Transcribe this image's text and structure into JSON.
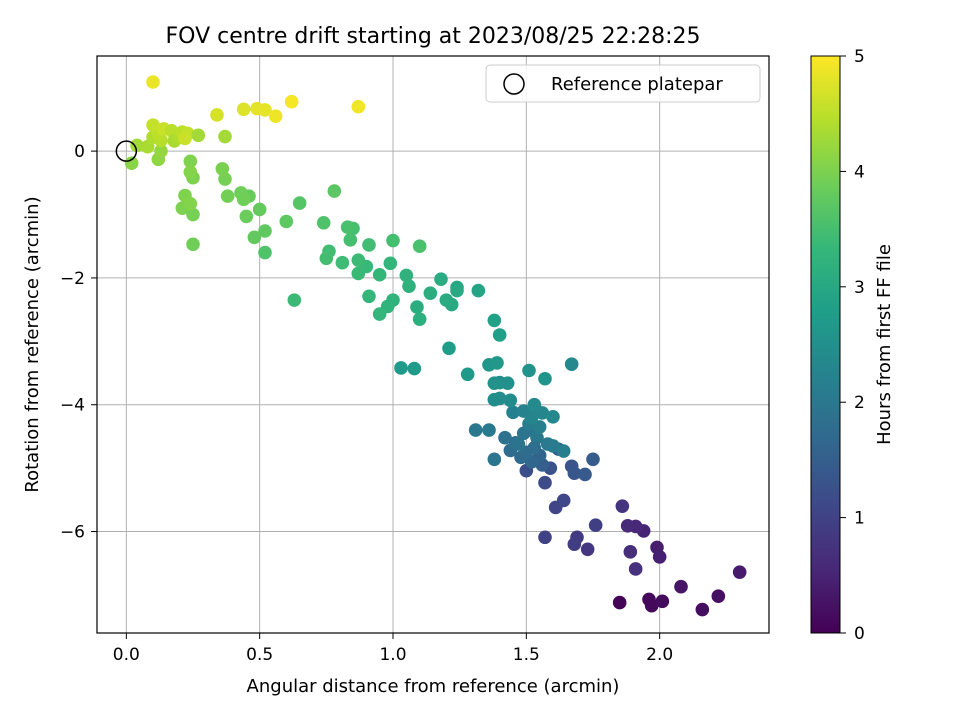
{
  "chart_data": {
    "type": "scatter",
    "title": "FOV centre drift starting at 2023/08/25 22:28:25",
    "xlabel": "Angular distance from reference (arcmin)",
    "ylabel": "Rotation from reference (arcmin)",
    "xlim": [
      -0.11,
      2.41
    ],
    "ylim": [
      -7.6,
      1.5
    ],
    "x_ticks": [
      0.0,
      0.5,
      1.0,
      1.5,
      2.0
    ],
    "x_tick_labels": [
      "0.0",
      "0.5",
      "1.0",
      "1.5",
      "2.0"
    ],
    "y_ticks": [
      0,
      -2,
      -4,
      -6
    ],
    "y_tick_labels": [
      "0",
      "−2",
      "−4",
      "−6"
    ],
    "grid": true,
    "legend": {
      "placement": "top-right",
      "entries": [
        {
          "label": "Reference platepar",
          "marker": "open-circle",
          "color": "#000000"
        }
      ]
    },
    "colorbar": {
      "label": "Hours from first FF file",
      "range": [
        0,
        5
      ],
      "ticks": [
        0,
        1,
        2,
        3,
        4,
        5
      ],
      "tick_labels": [
        "0",
        "1",
        "2",
        "3",
        "4",
        "5"
      ],
      "colormap": "viridis"
    },
    "reference_point": {
      "x": 0.0,
      "y": 0.0
    },
    "series": [
      {
        "color_by": "hours",
        "points": [
          {
            "x": 1.85,
            "y": -7.12,
            "c": 0.05
          },
          {
            "x": 1.96,
            "y": -7.07,
            "c": 0.1
          },
          {
            "x": 1.97,
            "y": -7.17,
            "c": 0.12
          },
          {
            "x": 2.01,
            "y": -7.1,
            "c": 0.15
          },
          {
            "x": 2.16,
            "y": -7.23,
            "c": 0.18
          },
          {
            "x": 2.22,
            "y": -7.02,
            "c": 0.22
          },
          {
            "x": 2.08,
            "y": -6.87,
            "c": 0.28
          },
          {
            "x": 2.3,
            "y": -6.64,
            "c": 0.35
          },
          {
            "x": 1.99,
            "y": -6.25,
            "c": 0.4
          },
          {
            "x": 2.0,
            "y": -6.4,
            "c": 0.45
          },
          {
            "x": 1.94,
            "y": -5.99,
            "c": 0.5
          },
          {
            "x": 1.91,
            "y": -5.92,
            "c": 0.55
          },
          {
            "x": 1.88,
            "y": -5.91,
            "c": 0.6
          },
          {
            "x": 1.89,
            "y": -6.32,
            "c": 0.65
          },
          {
            "x": 1.91,
            "y": -6.59,
            "c": 0.7
          },
          {
            "x": 1.86,
            "y": -5.6,
            "c": 0.75
          },
          {
            "x": 1.73,
            "y": -6.28,
            "c": 0.8
          },
          {
            "x": 1.69,
            "y": -6.09,
            "c": 0.85
          },
          {
            "x": 1.68,
            "y": -6.2,
            "c": 0.9
          },
          {
            "x": 1.76,
            "y": -5.9,
            "c": 0.95
          },
          {
            "x": 1.57,
            "y": -6.09,
            "c": 1.0
          },
          {
            "x": 1.61,
            "y": -5.62,
            "c": 1.05
          },
          {
            "x": 1.64,
            "y": -5.51,
            "c": 1.1
          },
          {
            "x": 1.57,
            "y": -5.23,
            "c": 1.15
          },
          {
            "x": 1.5,
            "y": -5.04,
            "c": 1.2
          },
          {
            "x": 1.59,
            "y": -5.0,
            "c": 1.25
          },
          {
            "x": 1.67,
            "y": -4.97,
            "c": 1.3
          },
          {
            "x": 1.68,
            "y": -5.08,
            "c": 1.35
          },
          {
            "x": 1.72,
            "y": -5.1,
            "c": 1.4
          },
          {
            "x": 1.75,
            "y": -4.86,
            "c": 1.45
          },
          {
            "x": 1.56,
            "y": -4.95,
            "c": 1.5
          },
          {
            "x": 1.62,
            "y": -4.7,
            "c": 1.55
          },
          {
            "x": 1.55,
            "y": -4.8,
            "c": 1.6
          },
          {
            "x": 1.52,
            "y": -4.9,
            "c": 1.65
          },
          {
            "x": 1.48,
            "y": -4.83,
            "c": 1.7
          },
          {
            "x": 1.44,
            "y": -4.72,
            "c": 1.75
          },
          {
            "x": 1.46,
            "y": -4.6,
            "c": 1.8
          },
          {
            "x": 1.42,
            "y": -4.52,
            "c": 1.85
          },
          {
            "x": 1.49,
            "y": -4.45,
            "c": 1.9
          },
          {
            "x": 1.51,
            "y": -4.4,
            "c": 1.95
          },
          {
            "x": 1.54,
            "y": -4.52,
            "c": 2.0
          },
          {
            "x": 1.58,
            "y": -4.62,
            "c": 2.05
          },
          {
            "x": 1.6,
            "y": -4.65,
            "c": 2.1
          },
          {
            "x": 1.64,
            "y": -4.73,
            "c": 2.15
          },
          {
            "x": 1.53,
            "y": -4.68,
            "c": 1.8
          },
          {
            "x": 1.5,
            "y": -4.75,
            "c": 1.75
          },
          {
            "x": 1.47,
            "y": -4.62,
            "c": 1.9
          },
          {
            "x": 1.38,
            "y": -4.86,
            "c": 1.95
          },
          {
            "x": 1.31,
            "y": -4.4,
            "c": 2.0
          },
          {
            "x": 1.36,
            "y": -4.4,
            "c": 2.05
          },
          {
            "x": 1.51,
            "y": -4.3,
            "c": 2.1
          },
          {
            "x": 1.55,
            "y": -4.35,
            "c": 2.15
          },
          {
            "x": 1.45,
            "y": -4.12,
            "c": 2.2
          },
          {
            "x": 1.49,
            "y": -4.1,
            "c": 2.25
          },
          {
            "x": 1.52,
            "y": -4.2,
            "c": 2.28
          },
          {
            "x": 1.54,
            "y": -4.1,
            "c": 2.3
          },
          {
            "x": 1.56,
            "y": -4.13,
            "c": 2.33
          },
          {
            "x": 1.6,
            "y": -4.19,
            "c": 2.35
          },
          {
            "x": 1.53,
            "y": -4.0,
            "c": 2.38
          },
          {
            "x": 1.44,
            "y": -3.93,
            "c": 2.4
          },
          {
            "x": 1.4,
            "y": -3.9,
            "c": 2.42
          },
          {
            "x": 1.38,
            "y": -3.92,
            "c": 2.45
          },
          {
            "x": 1.4,
            "y": -3.65,
            "c": 2.48
          },
          {
            "x": 1.43,
            "y": -3.66,
            "c": 2.5
          },
          {
            "x": 1.38,
            "y": -3.66,
            "c": 2.53
          },
          {
            "x": 1.51,
            "y": -3.46,
            "c": 2.55
          },
          {
            "x": 1.57,
            "y": -3.59,
            "c": 2.6
          },
          {
            "x": 1.67,
            "y": -3.36,
            "c": 2.35
          },
          {
            "x": 1.36,
            "y": -3.37,
            "c": 2.62
          },
          {
            "x": 1.39,
            "y": -3.34,
            "c": 2.65
          },
          {
            "x": 1.28,
            "y": -3.52,
            "c": 2.68
          },
          {
            "x": 1.03,
            "y": -3.42,
            "c": 2.7
          },
          {
            "x": 1.08,
            "y": -3.43,
            "c": 2.72
          },
          {
            "x": 1.21,
            "y": -3.11,
            "c": 2.75
          },
          {
            "x": 1.4,
            "y": -2.9,
            "c": 2.8
          },
          {
            "x": 1.38,
            "y": -2.67,
            "c": 2.85
          },
          {
            "x": 1.32,
            "y": -2.2,
            "c": 2.9
          },
          {
            "x": 1.24,
            "y": -2.15,
            "c": 2.95
          },
          {
            "x": 1.24,
            "y": -2.2,
            "c": 3.0
          },
          {
            "x": 1.22,
            "y": -2.42,
            "c": 3.02
          },
          {
            "x": 1.2,
            "y": -2.35,
            "c": 3.05
          },
          {
            "x": 1.18,
            "y": -2.02,
            "c": 3.08
          },
          {
            "x": 1.14,
            "y": -2.24,
            "c": 3.1
          },
          {
            "x": 1.09,
            "y": -2.46,
            "c": 3.12
          },
          {
            "x": 1.1,
            "y": -2.65,
            "c": 3.15
          },
          {
            "x": 1.06,
            "y": -2.13,
            "c": 3.18
          },
          {
            "x": 1.05,
            "y": -1.96,
            "c": 3.2
          },
          {
            "x": 1.0,
            "y": -2.35,
            "c": 3.22
          },
          {
            "x": 0.98,
            "y": -2.45,
            "c": 3.25
          },
          {
            "x": 0.95,
            "y": -2.57,
            "c": 3.28
          },
          {
            "x": 0.91,
            "y": -2.29,
            "c": 3.3
          },
          {
            "x": 0.95,
            "y": -1.95,
            "c": 3.32
          },
          {
            "x": 0.9,
            "y": -1.82,
            "c": 3.35
          },
          {
            "x": 0.87,
            "y": -1.93,
            "c": 3.38
          },
          {
            "x": 0.87,
            "y": -1.72,
            "c": 3.4
          },
          {
            "x": 0.99,
            "y": -1.77,
            "c": 3.3
          },
          {
            "x": 0.81,
            "y": -1.76,
            "c": 3.42
          },
          {
            "x": 0.76,
            "y": -1.58,
            "c": 3.45
          },
          {
            "x": 0.75,
            "y": -1.69,
            "c": 3.48
          },
          {
            "x": 0.84,
            "y": -1.4,
            "c": 3.5
          },
          {
            "x": 0.85,
            "y": -1.22,
            "c": 3.52
          },
          {
            "x": 0.83,
            "y": -1.2,
            "c": 3.55
          },
          {
            "x": 0.74,
            "y": -1.13,
            "c": 3.58
          },
          {
            "x": 0.91,
            "y": -1.48,
            "c": 3.45
          },
          {
            "x": 1.0,
            "y": -1.41,
            "c": 3.5
          },
          {
            "x": 1.1,
            "y": -1.5,
            "c": 3.55
          },
          {
            "x": 0.63,
            "y": -2.35,
            "c": 3.4
          },
          {
            "x": 0.65,
            "y": -0.82,
            "c": 3.65
          },
          {
            "x": 0.78,
            "y": -0.63,
            "c": 3.7
          },
          {
            "x": 0.6,
            "y": -1.11,
            "c": 3.72
          },
          {
            "x": 0.52,
            "y": -1.26,
            "c": 3.75
          },
          {
            "x": 0.52,
            "y": -1.6,
            "c": 3.6
          },
          {
            "x": 0.48,
            "y": -1.36,
            "c": 3.78
          },
          {
            "x": 0.5,
            "y": -0.92,
            "c": 3.8
          },
          {
            "x": 0.46,
            "y": -0.71,
            "c": 3.82
          },
          {
            "x": 0.45,
            "y": -1.03,
            "c": 3.85
          },
          {
            "x": 0.43,
            "y": -0.66,
            "c": 3.88
          },
          {
            "x": 0.44,
            "y": -0.76,
            "c": 3.9
          },
          {
            "x": 0.38,
            "y": -0.71,
            "c": 3.92
          },
          {
            "x": 0.37,
            "y": -0.44,
            "c": 3.95
          },
          {
            "x": 0.36,
            "y": -0.28,
            "c": 3.98
          },
          {
            "x": 0.25,
            "y": -0.42,
            "c": 4.0
          },
          {
            "x": 0.24,
            "y": -0.16,
            "c": 4.02
          },
          {
            "x": 0.24,
            "y": -0.33,
            "c": 4.05
          },
          {
            "x": 0.22,
            "y": -0.7,
            "c": 4.02
          },
          {
            "x": 0.21,
            "y": -0.9,
            "c": 4.0
          },
          {
            "x": 0.25,
            "y": -1.0,
            "c": 3.95
          },
          {
            "x": 0.25,
            "y": -1.47,
            "c": 3.9
          },
          {
            "x": 0.24,
            "y": -0.83,
            "c": 4.05
          },
          {
            "x": 0.02,
            "y": -0.19,
            "c": 4.1
          },
          {
            "x": 0.12,
            "y": -0.13,
            "c": 4.15
          },
          {
            "x": 0.13,
            "y": 0.0,
            "c": 4.2
          },
          {
            "x": 0.04,
            "y": 0.09,
            "c": 4.3
          },
          {
            "x": 0.08,
            "y": 0.07,
            "c": 4.35
          },
          {
            "x": 0.1,
            "y": 0.22,
            "c": 4.4
          },
          {
            "x": 0.13,
            "y": 0.17,
            "c": 4.45
          },
          {
            "x": 0.12,
            "y": 0.28,
            "c": 4.5
          },
          {
            "x": 0.1,
            "y": 0.41,
            "c": 4.55
          },
          {
            "x": 0.14,
            "y": 0.35,
            "c": 4.6
          },
          {
            "x": 0.17,
            "y": 0.32,
            "c": 4.48
          },
          {
            "x": 0.18,
            "y": 0.16,
            "c": 4.35
          },
          {
            "x": 0.2,
            "y": 0.22,
            "c": 4.42
          },
          {
            "x": 0.21,
            "y": 0.3,
            "c": 4.5
          },
          {
            "x": 0.23,
            "y": 0.28,
            "c": 4.55
          },
          {
            "x": 0.22,
            "y": 0.2,
            "c": 4.6
          },
          {
            "x": 0.27,
            "y": 0.25,
            "c": 4.3
          },
          {
            "x": 0.37,
            "y": 0.23,
            "c": 4.3
          },
          {
            "x": 0.34,
            "y": 0.57,
            "c": 4.7
          },
          {
            "x": 0.44,
            "y": 0.66,
            "c": 4.75
          },
          {
            "x": 0.49,
            "y": 0.67,
            "c": 4.8
          },
          {
            "x": 0.52,
            "y": 0.65,
            "c": 4.82
          },
          {
            "x": 0.56,
            "y": 0.55,
            "c": 4.88
          },
          {
            "x": 0.62,
            "y": 0.78,
            "c": 4.95
          },
          {
            "x": 0.87,
            "y": 0.7,
            "c": 4.9
          },
          {
            "x": 0.1,
            "y": 1.09,
            "c": 4.85
          }
        ]
      }
    ]
  }
}
